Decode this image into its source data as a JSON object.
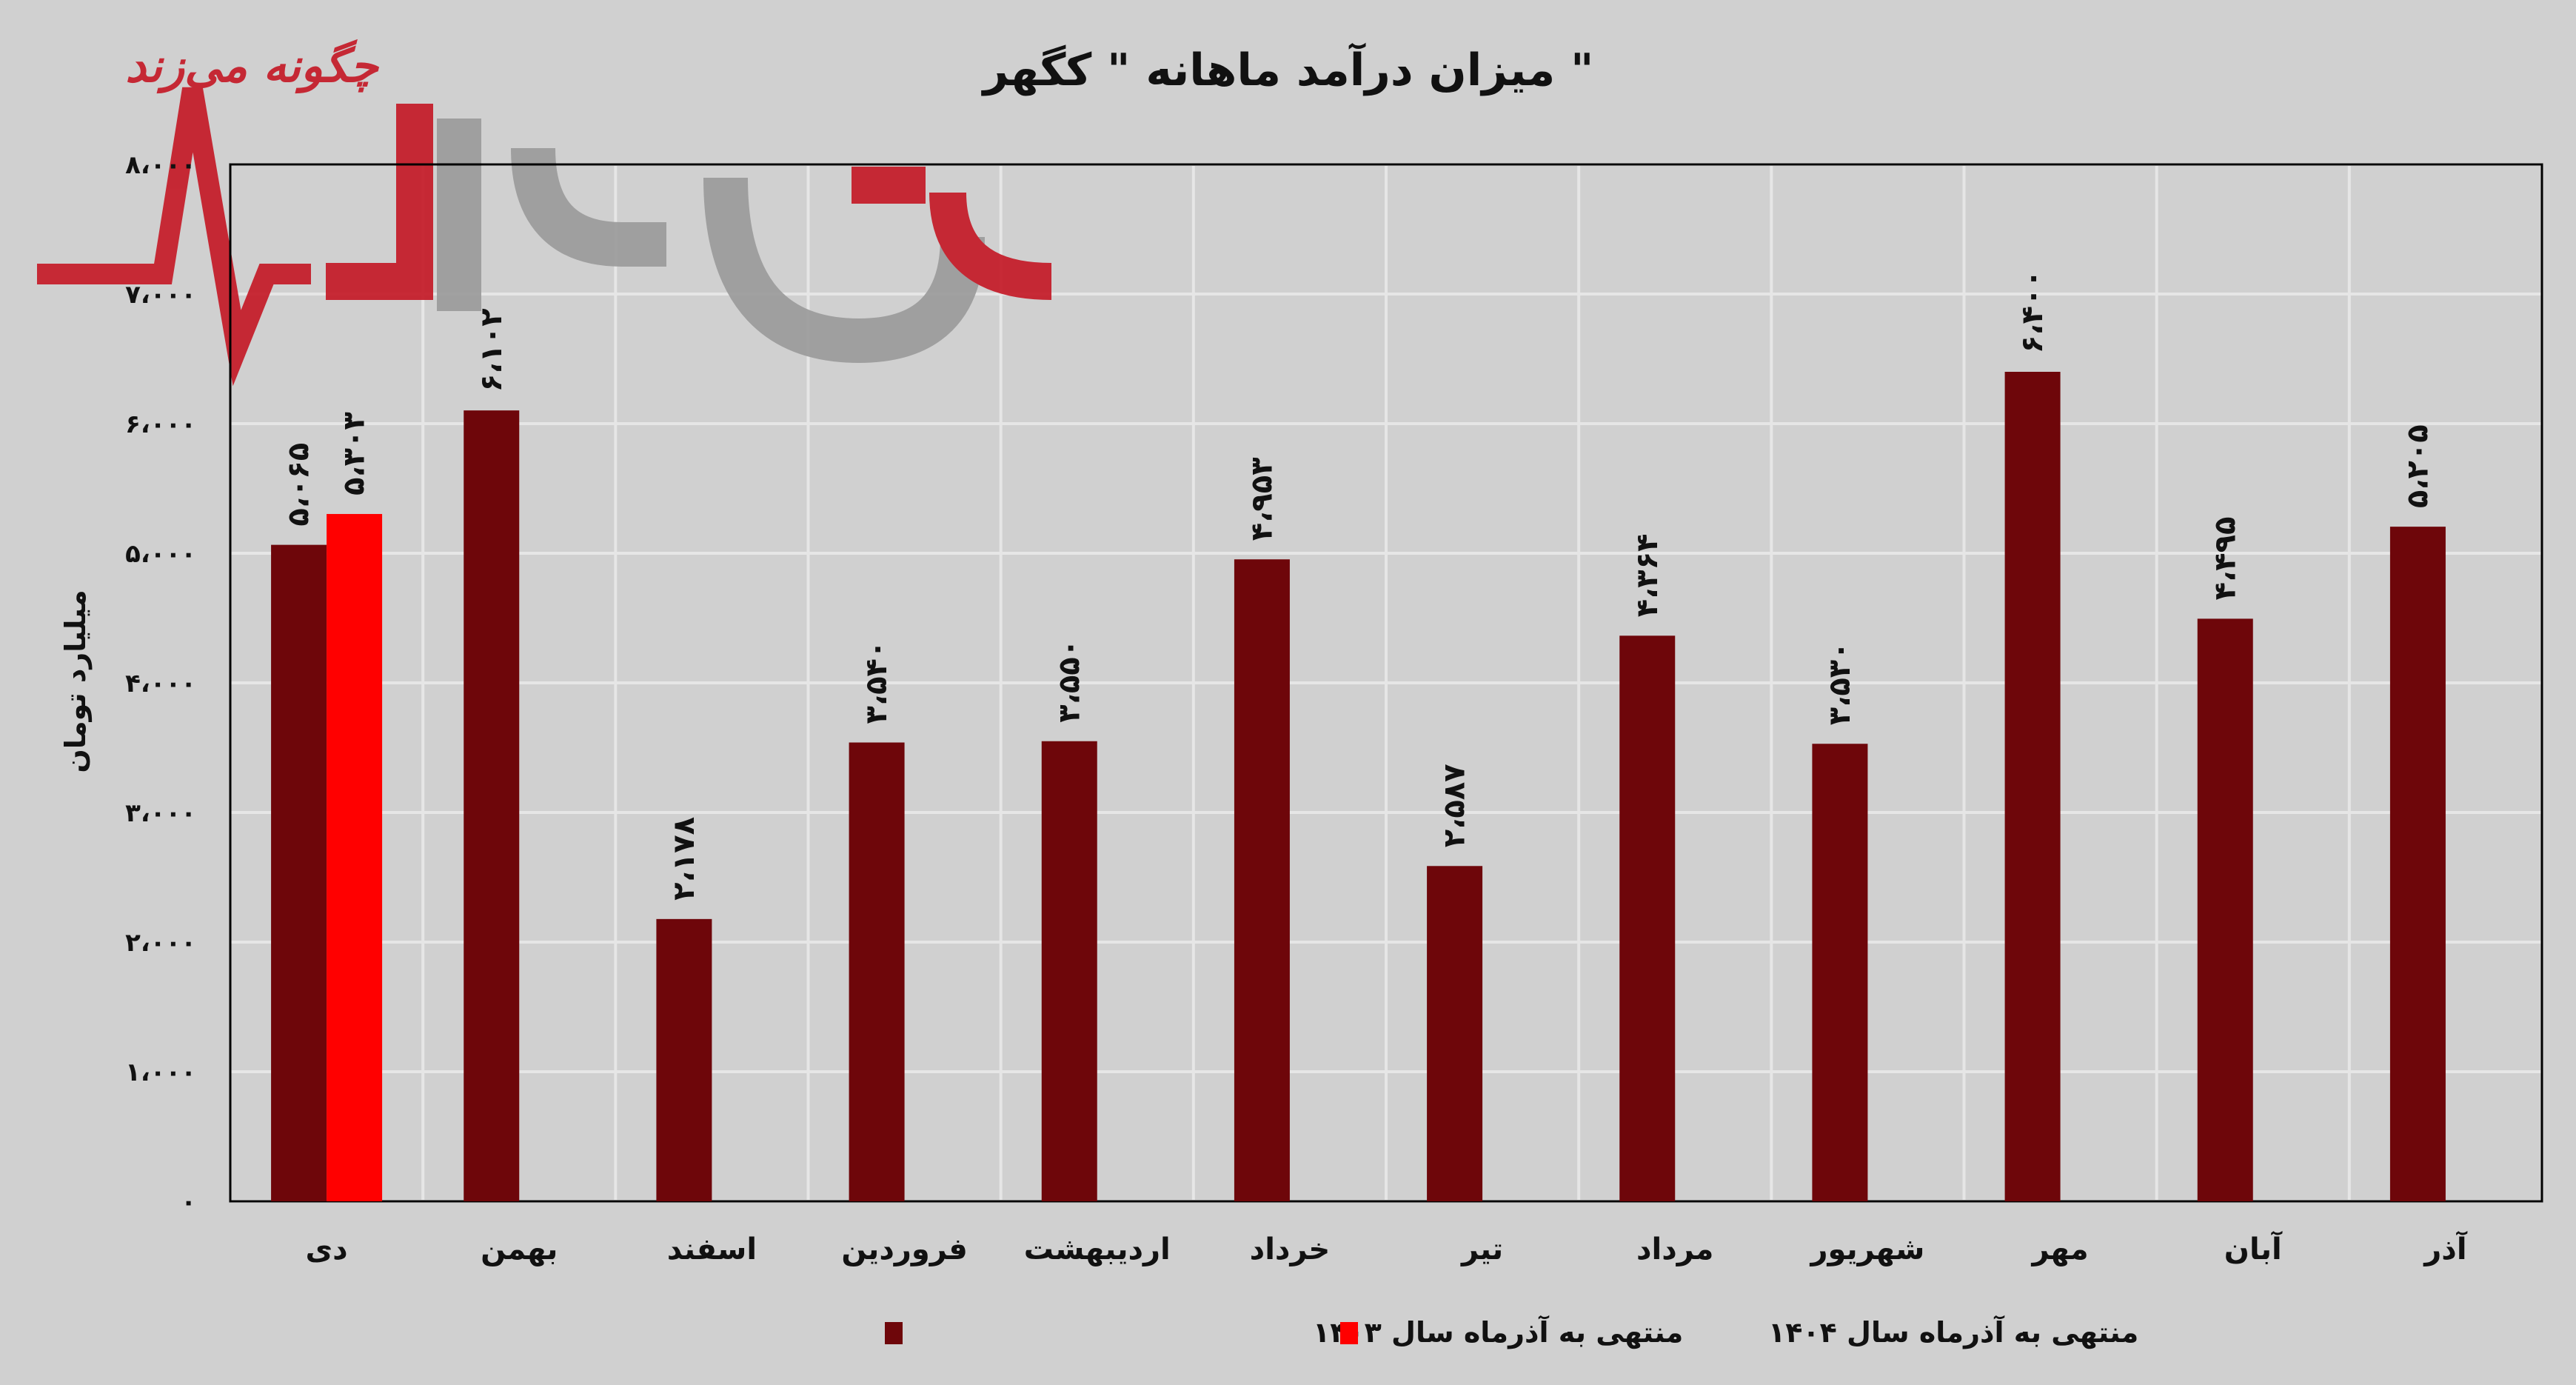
{
  "chart_data": {
    "type": "bar",
    "title": "میزان درآمد ماهانه \" کگهر \"",
    "ylabel": "میلیارد تومان",
    "xlabel": "",
    "ylim": [
      0,
      8000
    ],
    "grid": true,
    "legend_position": "bottom",
    "yticks": [
      0,
      1000,
      2000,
      3000,
      4000,
      5000,
      6000,
      7000,
      8000
    ],
    "ytick_labels": [
      "۰",
      "۱،۰۰۰",
      "۲،۰۰۰",
      "۳،۰۰۰",
      "۴،۰۰۰",
      "۵،۰۰۰",
      "۶،۰۰۰",
      "۷،۰۰۰",
      "۸،۰۰۰"
    ],
    "categories": [
      "دی",
      "بهمن",
      "اسفند",
      "فروردین",
      "اردیبهشت",
      "خرداد",
      "تیر",
      "مرداد",
      "شهریور",
      "مهر",
      "آبان",
      "آذر"
    ],
    "series": [
      {
        "name": "منتهی به آذرماه سال ۱۴۰۳",
        "color": "#6e060a",
        "values": [
          5065,
          6102,
          2178,
          3540,
          3550,
          4953,
          2587,
          4364,
          3530,
          6400,
          4495,
          5205
        ],
        "labels": [
          "۵،۰۶۵",
          "۶،۱۰۲",
          "۲،۱۷۸",
          "۳،۵۴۰",
          "۳،۵۵۰",
          "۴،۹۵۳",
          "۲،۵۸۷",
          "۴،۳۶۴",
          "۳،۵۳۰",
          "۶،۴۰۰",
          "۴،۴۹۵",
          "۵،۲۰۵"
        ]
      },
      {
        "name": "منتهی به آذرماه سال ۱۴۰۴",
        "color": "#ff0000",
        "values": [
          5303,
          null,
          null,
          null,
          null,
          null,
          null,
          null,
          null,
          null,
          null,
          null
        ],
        "labels": [
          "۵،۳۰۳",
          null,
          null,
          null,
          null,
          null,
          null,
          null,
          null,
          null,
          null,
          null
        ]
      }
    ]
  },
  "watermark": {
    "tagline": "چگونه می‌زند",
    "name": "بورس نیوز",
    "colors": {
      "red": "#c41624",
      "gray": "#9a9a9a"
    }
  },
  "colors": {
    "background": "#d0d0d0",
    "grid": "#e6e6e6"
  }
}
